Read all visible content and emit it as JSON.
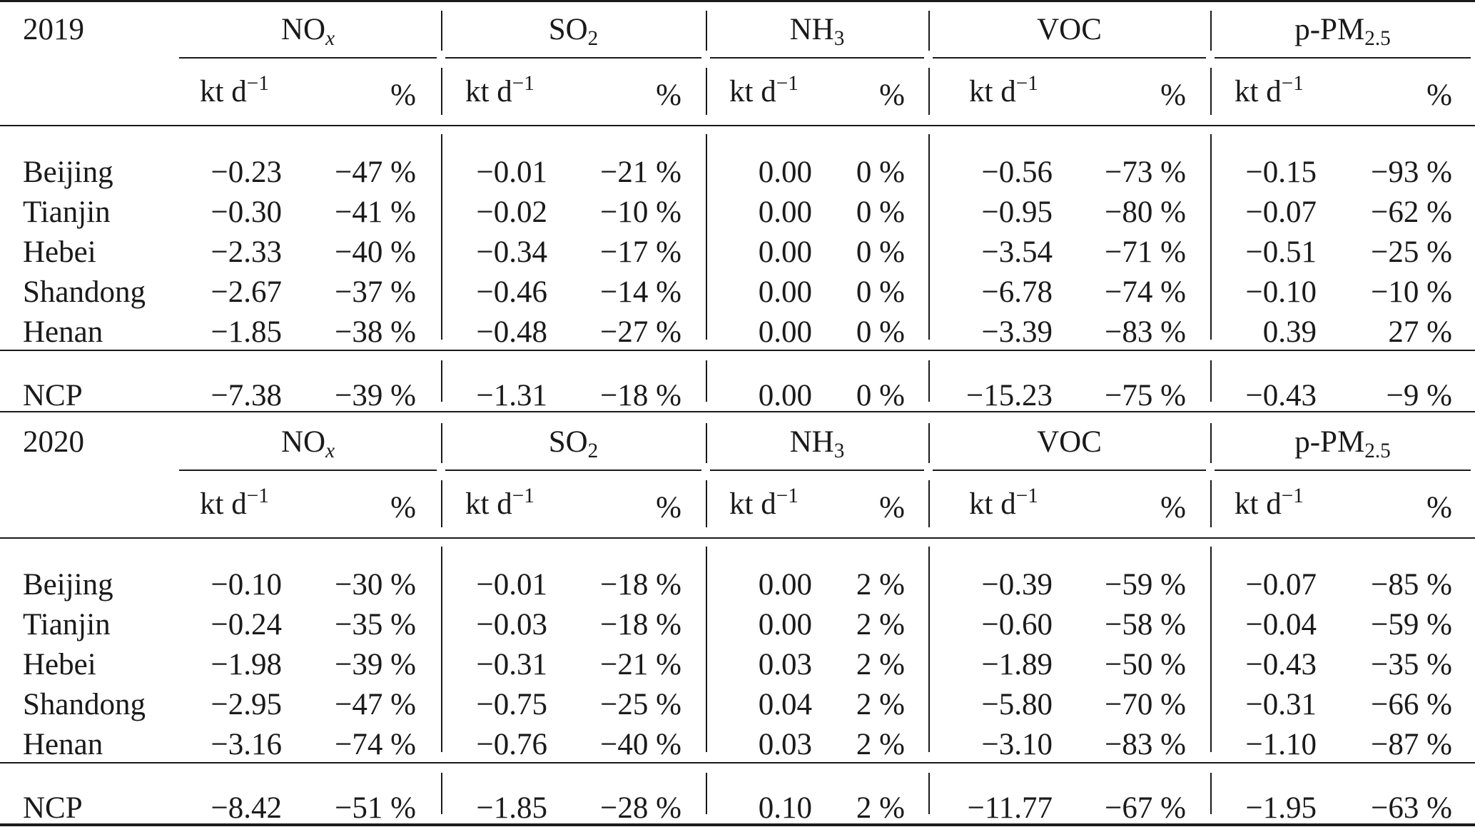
{
  "blocks": [
    {
      "year": "2019",
      "rows": [
        {
          "region": "Beijing",
          "vals": [
            "−0.23",
            "−47 %",
            "−0.01",
            "−21 %",
            "0.00",
            "0 %",
            "−0.56",
            "−73 %",
            "−0.15",
            "−93 %"
          ]
        },
        {
          "region": "Tianjin",
          "vals": [
            "−0.30",
            "−41 %",
            "−0.02",
            "−10 %",
            "0.00",
            "0 %",
            "−0.95",
            "−80 %",
            "−0.07",
            "−62 %"
          ]
        },
        {
          "region": "Hebei",
          "vals": [
            "−2.33",
            "−40 %",
            "−0.34",
            "−17 %",
            "0.00",
            "0 %",
            "−3.54",
            "−71 %",
            "−0.51",
            "−25 %"
          ]
        },
        {
          "region": "Shandong",
          "vals": [
            "−2.67",
            "−37 %",
            "−0.46",
            "−14 %",
            "0.00",
            "0 %",
            "−6.78",
            "−74 %",
            "−0.10",
            "−10 %"
          ]
        },
        {
          "region": "Henan",
          "vals": [
            "−1.85",
            "−38 %",
            "−0.48",
            "−27 %",
            "0.00",
            "0 %",
            "−3.39",
            "−83 %",
            "0.39",
            "27 %"
          ]
        }
      ],
      "total": {
        "region": "NCP",
        "vals": [
          "−7.38",
          "−39 %",
          "−1.31",
          "−18 %",
          "0.00",
          "0 %",
          "−15.23",
          "−75 %",
          "−0.43",
          "−9 %"
        ]
      }
    },
    {
      "year": "2020",
      "rows": [
        {
          "region": "Beijing",
          "vals": [
            "−0.10",
            "−30 %",
            "−0.01",
            "−18 %",
            "0.00",
            "2 %",
            "−0.39",
            "−59 %",
            "−0.07",
            "−85 %"
          ]
        },
        {
          "region": "Tianjin",
          "vals": [
            "−0.24",
            "−35 %",
            "−0.03",
            "−18 %",
            "0.00",
            "2 %",
            "−0.60",
            "−58 %",
            "−0.04",
            "−59 %"
          ]
        },
        {
          "region": "Hebei",
          "vals": [
            "−1.98",
            "−39 %",
            "−0.31",
            "−21 %",
            "0.03",
            "2 %",
            "−1.89",
            "−50 %",
            "−0.43",
            "−35 %"
          ]
        },
        {
          "region": "Shandong",
          "vals": [
            "−2.95",
            "−47 %",
            "−0.75",
            "−25 %",
            "0.04",
            "2 %",
            "−5.80",
            "−70 %",
            "−0.31",
            "−66 %"
          ]
        },
        {
          "region": "Henan",
          "vals": [
            "−3.16",
            "−74 %",
            "−0.76",
            "−40 %",
            "0.03",
            "2 %",
            "−3.10",
            "−83 %",
            "−1.10",
            "−87 %"
          ]
        }
      ],
      "total": {
        "region": "NCP",
        "vals": [
          "−8.42",
          "−51 %",
          "−1.85",
          "−28 %",
          "0.10",
          "2 %",
          "−11.77",
          "−67 %",
          "−1.95",
          "−63 %"
        ]
      }
    }
  ],
  "species": [
    {
      "base": "NO",
      "sub": "x",
      "sub_italic": true
    },
    {
      "base": "SO",
      "sub": "2",
      "sub_italic": false
    },
    {
      "base": "NH",
      "sub": "3",
      "sub_italic": false
    },
    {
      "base": "VOC",
      "sub": "",
      "sub_italic": false
    },
    {
      "base": "p-PM",
      "sub": "2.5",
      "sub_italic": false
    }
  ],
  "units": {
    "rate_base": "kt d",
    "rate_exp": "−1",
    "percent": "%"
  }
}
